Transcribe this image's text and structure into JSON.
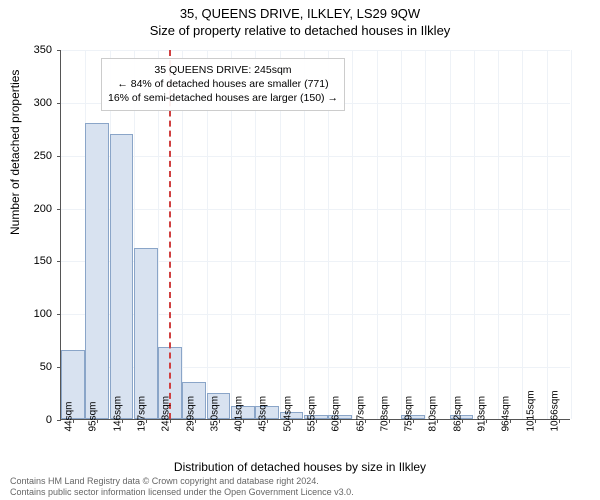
{
  "title_main": "35, QUEENS DRIVE, ILKLEY, LS29 9QW",
  "title_sub": "Size of property relative to detached houses in Ilkley",
  "chart": {
    "type": "histogram",
    "ylabel": "Number of detached properties",
    "xlabel": "Distribution of detached houses by size in Ilkley",
    "ylim": [
      0,
      350
    ],
    "ytick_step": 50,
    "bar_fill": "#d8e2f0",
    "bar_stroke": "#8aa5c8",
    "grid_color": "#eef2f7",
    "background_color": "#ffffff",
    "reference_line": {
      "value": 245,
      "color": "#d04040",
      "dash": true
    },
    "annotation": {
      "lines": [
        "35 QUEENS DRIVE: 245sqm",
        "← 84% of detached houses are smaller (771)",
        "16% of semi-detached houses are larger (150) →"
      ],
      "border_color": "#cccccc",
      "fontsize": 10.5
    },
    "x_categories": [
      "44sqm",
      "95sqm",
      "146sqm",
      "197sqm",
      "248sqm",
      "299sqm",
      "350sqm",
      "401sqm",
      "453sqm",
      "504sqm",
      "555sqm",
      "606sqm",
      "657sqm",
      "708sqm",
      "759sqm",
      "810sqm",
      "862sqm",
      "913sqm",
      "964sqm",
      "1015sqm",
      "1066sqm"
    ],
    "values": [
      65,
      280,
      270,
      162,
      68,
      35,
      25,
      12,
      12,
      7,
      4,
      4,
      0,
      0,
      4,
      0,
      4,
      0,
      0,
      0,
      0
    ],
    "bar_width_ratio": 1.0,
    "title_fontsize": 13,
    "label_fontsize": 12,
    "tick_fontsize": 10
  },
  "footer": {
    "line1": "Contains HM Land Registry data © Crown copyright and database right 2024.",
    "line2": "Contains public sector information licensed under the Open Government Licence v3.0."
  }
}
